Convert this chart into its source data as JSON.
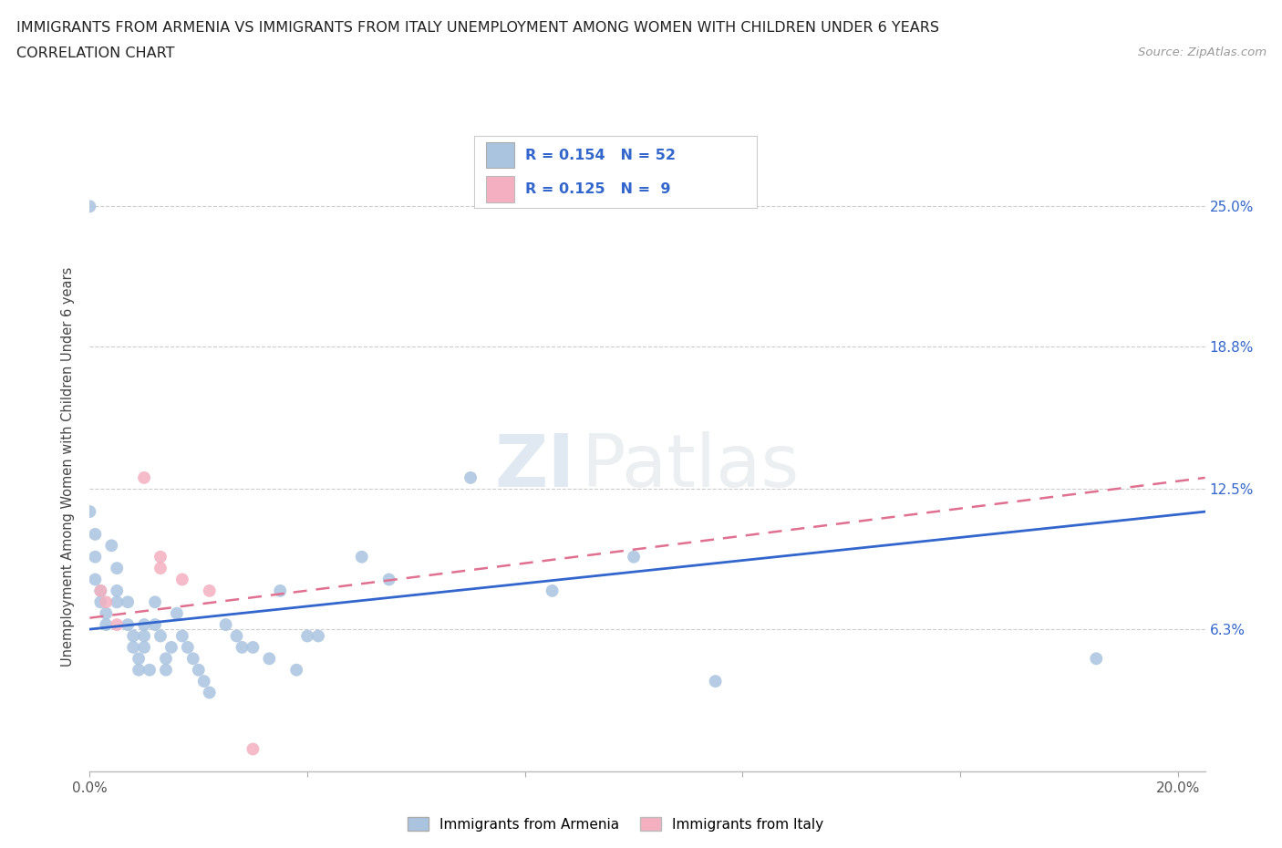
{
  "title_line1": "IMMIGRANTS FROM ARMENIA VS IMMIGRANTS FROM ITALY UNEMPLOYMENT AMONG WOMEN WITH CHILDREN UNDER 6 YEARS",
  "title_line2": "CORRELATION CHART",
  "source_text": "Source: ZipAtlas.com",
  "ylabel": "Unemployment Among Women with Children Under 6 years",
  "xlim": [
    0.0,
    0.205
  ],
  "ylim": [
    0.0,
    0.27
  ],
  "xticks": [
    0.0,
    0.04,
    0.08,
    0.12,
    0.16,
    0.2
  ],
  "xtick_labels": [
    "0.0%",
    "",
    "",
    "",
    "",
    "20.0%"
  ],
  "ytick_labels": [
    "6.3%",
    "12.5%",
    "18.8%",
    "25.0%"
  ],
  "ytick_vals": [
    0.063,
    0.125,
    0.188,
    0.25
  ],
  "watermark_zi": "ZI",
  "watermark_patlas": "Patlas",
  "armenia_color": "#aac4e0",
  "italy_color": "#f4b0c0",
  "armenia_line_color": "#3366cc",
  "italy_line_color": "#e07090",
  "armenia_R": 0.154,
  "armenia_N": 52,
  "italy_R": 0.125,
  "italy_N": 9,
  "armenia_trend_x0": 0.0,
  "armenia_trend_y0": 0.063,
  "armenia_trend_x1": 0.205,
  "armenia_trend_y1": 0.115,
  "italy_trend_x0": 0.0,
  "italy_trend_y0": 0.068,
  "italy_trend_x1": 0.205,
  "italy_trend_y1": 0.13,
  "armenia_scatter_x": [
    0.0,
    0.0,
    0.001,
    0.001,
    0.001,
    0.002,
    0.002,
    0.003,
    0.003,
    0.004,
    0.005,
    0.005,
    0.005,
    0.007,
    0.007,
    0.008,
    0.008,
    0.009,
    0.009,
    0.01,
    0.01,
    0.01,
    0.011,
    0.012,
    0.012,
    0.013,
    0.014,
    0.014,
    0.015,
    0.016,
    0.017,
    0.018,
    0.019,
    0.02,
    0.021,
    0.022,
    0.025,
    0.027,
    0.028,
    0.03,
    0.033,
    0.035,
    0.038,
    0.04,
    0.042,
    0.05,
    0.055,
    0.07,
    0.085,
    0.1,
    0.115,
    0.185
  ],
  "armenia_scatter_y": [
    0.25,
    0.115,
    0.105,
    0.095,
    0.085,
    0.08,
    0.075,
    0.07,
    0.065,
    0.1,
    0.09,
    0.08,
    0.075,
    0.075,
    0.065,
    0.06,
    0.055,
    0.05,
    0.045,
    0.065,
    0.06,
    0.055,
    0.045,
    0.075,
    0.065,
    0.06,
    0.05,
    0.045,
    0.055,
    0.07,
    0.06,
    0.055,
    0.05,
    0.045,
    0.04,
    0.035,
    0.065,
    0.06,
    0.055,
    0.055,
    0.05,
    0.08,
    0.045,
    0.06,
    0.06,
    0.095,
    0.085,
    0.13,
    0.08,
    0.095,
    0.04,
    0.05
  ],
  "italy_scatter_x": [
    0.002,
    0.003,
    0.005,
    0.01,
    0.013,
    0.013,
    0.017,
    0.022,
    0.03
  ],
  "italy_scatter_y": [
    0.08,
    0.075,
    0.065,
    0.13,
    0.095,
    0.09,
    0.085,
    0.08,
    0.01
  ],
  "background_color": "#ffffff",
  "grid_color": "#cccccc"
}
